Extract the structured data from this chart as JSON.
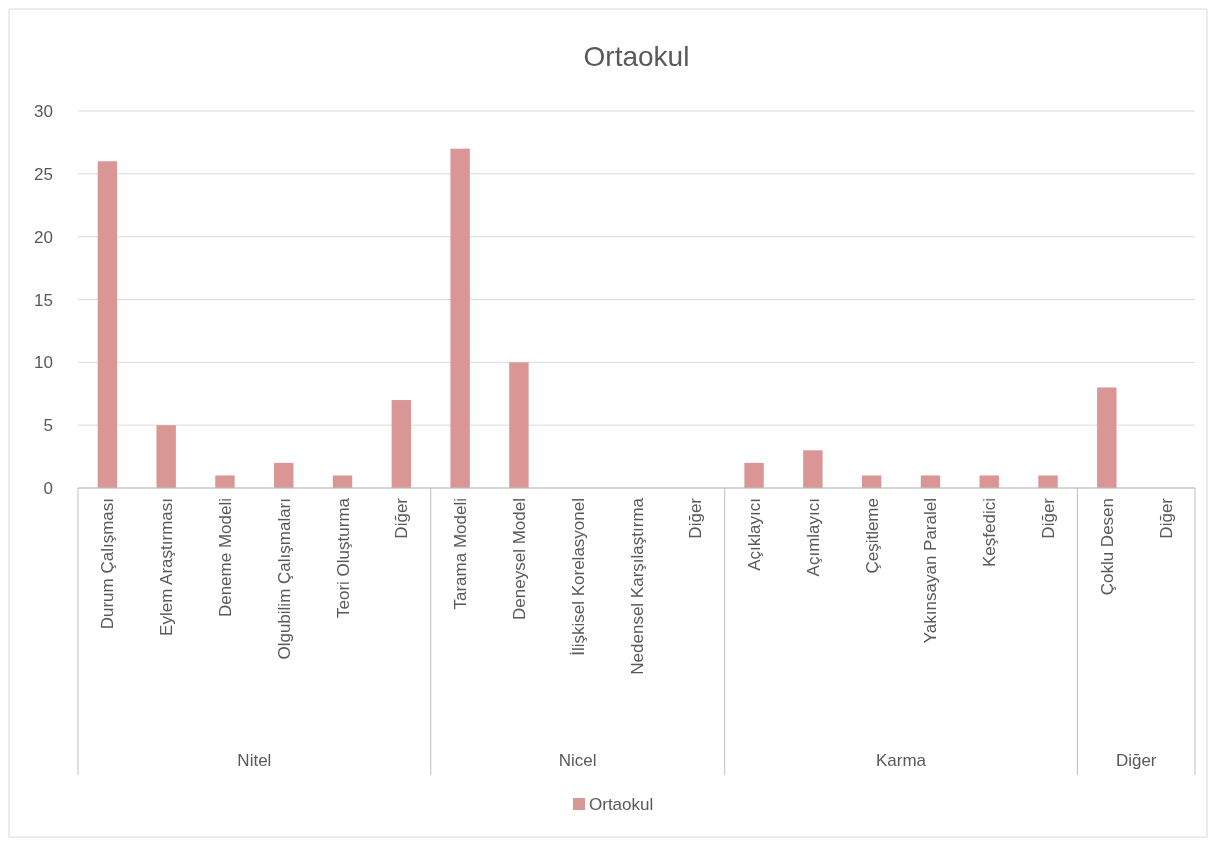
{
  "chart_data": {
    "type": "bar",
    "title": "Ortaokul",
    "categories": [
      "Durum Çalışması",
      "Eylem Araştırması",
      "Deneme Modeli",
      "Olgubilim Çalışmaları",
      "Teori Oluşturma",
      "Diğer",
      "Tarama Modeli",
      "Deneysel Model",
      "İlişkisel Korelasyonel",
      "Nedensel Karşılaştırma",
      "Diğer",
      "Açıklayıcı",
      "Açımlayıcı",
      "Çeşitleme",
      "Yakınsayan Paralel",
      "Keşfedici",
      "Diğer",
      "Çoklu Desen",
      "Diğer"
    ],
    "series": [
      {
        "name": "Ortaokul",
        "color": "#d99694",
        "values": [
          26,
          5,
          1,
          2,
          1,
          7,
          27,
          10,
          0,
          0,
          0,
          2,
          3,
          1,
          1,
          1,
          1,
          8,
          0
        ]
      }
    ],
    "annotations": [
      "Nitel",
      "Nicel",
      "Karma",
      "Diğer"
    ],
    "ylim": [
      0,
      30
    ],
    "yticks": [
      0,
      5,
      10,
      15,
      20,
      25,
      30
    ],
    "grid": "y",
    "legend": "bottom"
  }
}
